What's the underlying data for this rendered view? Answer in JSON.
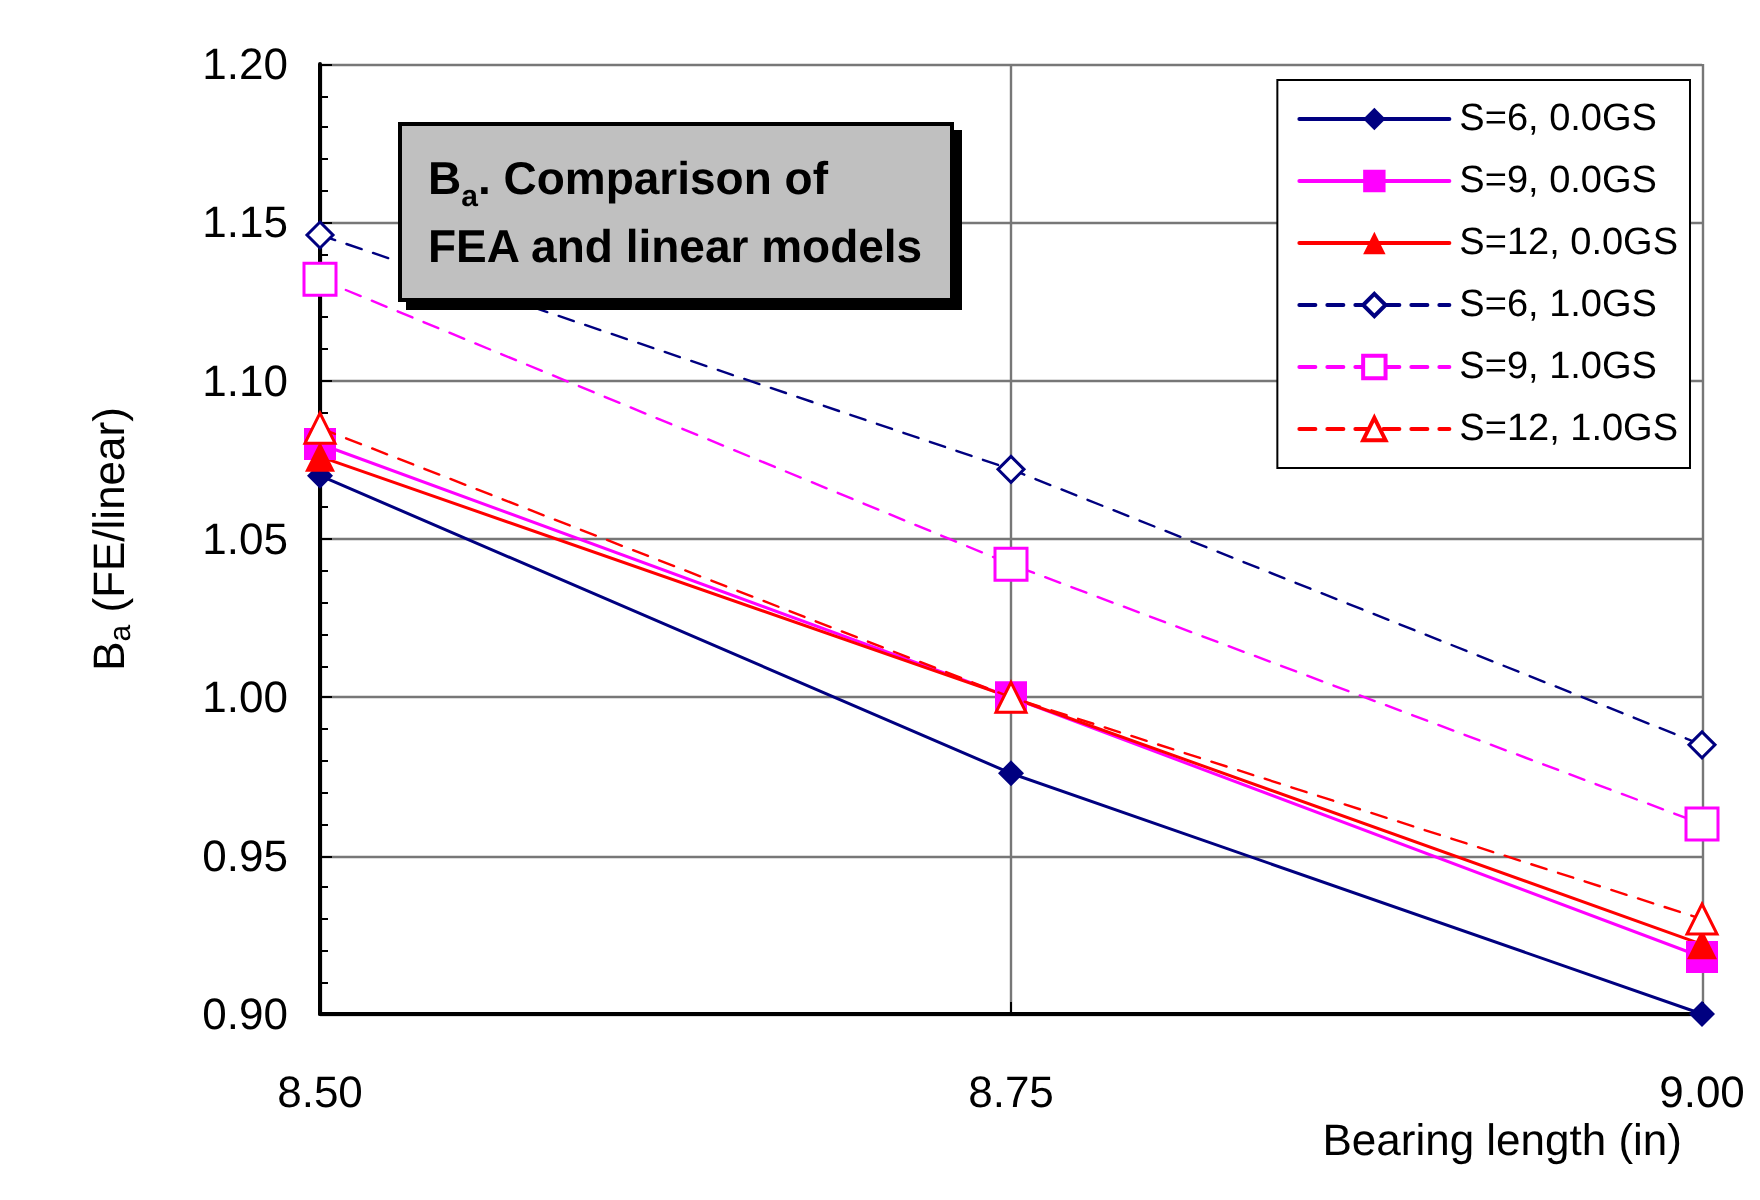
{
  "chart_data": {
    "type": "line",
    "title": "B$_{a}$. Comparison of FEA and linear models",
    "xlabel": "Bearing length (in)",
    "ylabel": "B$_{a}$ (FE/linear)",
    "x": [
      8.5,
      8.75,
      9.0
    ],
    "xlim": [
      8.5,
      9.0
    ],
    "xticks": [
      {
        "value": 8.5,
        "label": "8.50"
      },
      {
        "value": 8.75,
        "label": "8.75"
      },
      {
        "value": 9.0,
        "label": "9.00"
      }
    ],
    "ylim": [
      0.9,
      1.2
    ],
    "yticks": [
      {
        "value": 0.9,
        "label": "0.90"
      },
      {
        "value": 0.95,
        "label": "0.95"
      },
      {
        "value": 1.0,
        "label": "1.00"
      },
      {
        "value": 1.05,
        "label": "1.05"
      },
      {
        "value": 1.1,
        "label": "1.10"
      },
      {
        "value": 1.15,
        "label": "1.15"
      },
      {
        "value": 1.2,
        "label": "1.20"
      }
    ],
    "grid": true,
    "legend": "top right",
    "series": [
      {
        "name": "S=6, 0.0GS",
        "color": "#000080",
        "marker": "diamond",
        "line_style": "solid",
        "values": [
          1.07,
          0.976,
          0.9
        ]
      },
      {
        "name": "S=9, 0.0GS",
        "color": "#ff00ff",
        "marker": "square",
        "line_style": "solid",
        "values": [
          1.08,
          1.0,
          0.918
        ]
      },
      {
        "name": "S=12, 0.0GS",
        "color": "#ff0000",
        "marker": "triangle",
        "line_style": "solid",
        "values": [
          1.076,
          1.0,
          0.922
        ]
      },
      {
        "name": "S=6, 1.0GS",
        "color": "#000080",
        "marker": "diamond",
        "line_style": "dashed",
        "values": [
          1.146,
          1.072,
          0.985
        ]
      },
      {
        "name": "S=9, 1.0GS",
        "color": "#ff00ff",
        "marker": "square",
        "line_style": "dashed",
        "values": [
          1.132,
          1.042,
          0.96
        ]
      },
      {
        "name": "S=12, 1.0GS",
        "color": "#ff0000",
        "marker": "triangle",
        "line_style": "dashed",
        "values": [
          1.085,
          1.0,
          0.93
        ]
      }
    ]
  }
}
